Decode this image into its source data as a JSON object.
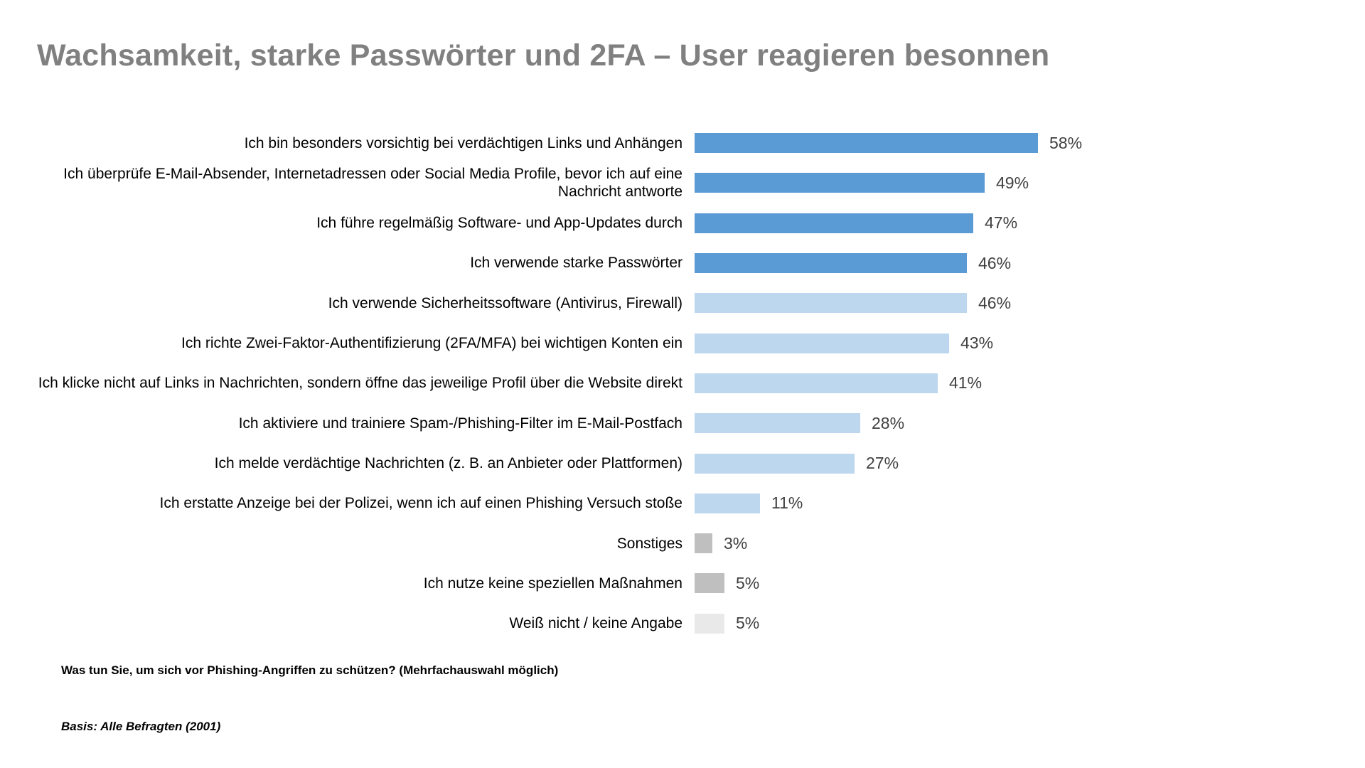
{
  "title": "Wachsamkeit, starke Passwörter und 2FA – User reagieren besonnen",
  "chart_data": {
    "type": "bar",
    "orientation": "horizontal",
    "title": "Wachsamkeit, starke Passwörter und 2FA – User reagieren besonnen",
    "unit": "%",
    "value_axis_visible": false,
    "grid": false,
    "legend": false,
    "xlim": [
      0,
      60
    ],
    "categories": [
      "Ich bin besonders vorsichtig bei verdächtigen Links und Anhängen",
      "Ich überprüfe E-Mail-Absender, Internetadressen oder Social Media Profile, bevor ich auf eine Nachricht antworte",
      "Ich führe regelmäßig Software- und App-Updates durch",
      "Ich verwende starke Passwörter",
      "Ich verwende Sicherheitssoftware (Antivirus, Firewall)",
      "Ich richte Zwei-Faktor-Authentifizierung (2FA/MFA) bei wichtigen Konten ein",
      "Ich klicke nicht auf Links in Nachrichten, sondern öffne das jeweilige Profil über die Website direkt",
      "Ich aktiviere und trainiere Spam-/Phishing-Filter im E-Mail-Postfach",
      "Ich melde verdächtige Nachrichten (z. B. an Anbieter oder Plattformen)",
      "Ich erstatte Anzeige bei der Polizei, wenn ich auf einen Phishing Versuch stoße",
      "Sonstiges",
      "Ich nutze keine speziellen Maßnahmen",
      "Weiß nicht / keine Angabe"
    ],
    "values": [
      58,
      49,
      47,
      46,
      46,
      43,
      41,
      28,
      27,
      11,
      3,
      5,
      5
    ],
    "value_labels": [
      "58%",
      "49%",
      "47%",
      "46%",
      "46%",
      "43%",
      "41%",
      "28%",
      "27%",
      "11%",
      "3%",
      "5%",
      "5%"
    ],
    "bar_colors": [
      "#5B9BD5",
      "#5B9BD5",
      "#5B9BD5",
      "#5B9BD5",
      "#BDD7EE",
      "#BDD7EE",
      "#BDD7EE",
      "#BDD7EE",
      "#BDD7EE",
      "#BDD7EE",
      "#BFBFBF",
      "#BFBFBF",
      "#E9E9E9"
    ],
    "colors": {
      "dark_blue": "#5B9BD5",
      "light_blue": "#BDD7EE",
      "gray": "#BFBFBF",
      "light_gray": "#E9E9E9",
      "title_gray": "#808080",
      "value_text": "#404040"
    }
  },
  "footer": {
    "question": "Was tun Sie, um sich vor Phishing-Angriffen zu schützen? (Mehrfachauswahl möglich)",
    "basis": "Basis: Alle Befragten (2001)"
  }
}
